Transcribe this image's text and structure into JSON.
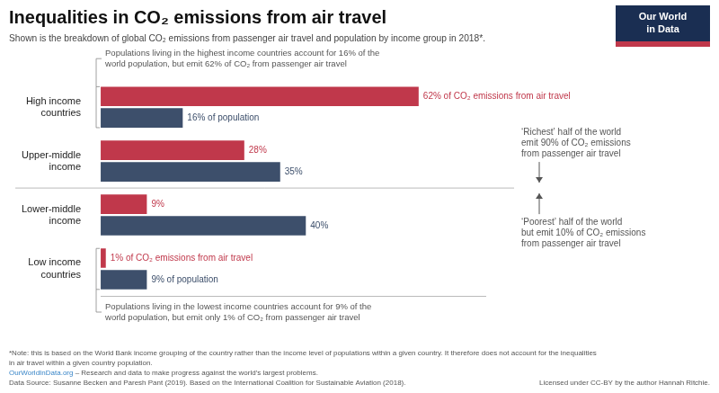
{
  "chart_data": {
    "type": "bar",
    "orientation": "horizontal",
    "title": "Inequalities in CO₂ emissions from air travel",
    "subtitle": "Shown is the breakdown of global CO₂ emissions from passenger air travel and population by income group in 2018*.",
    "categories": [
      "High income\ncountries",
      "Upper-middle\nincome",
      "Lower-middle\nincome",
      "Low income\ncountries"
    ],
    "series": [
      {
        "color": "#c0384b",
        "values": [
          62,
          28,
          9,
          1
        ],
        "value_labels": [
          "62% of CO₂ emissions from air travel",
          "28%",
          "9%",
          "1% of CO₂ emissions from air travel"
        ]
      },
      {
        "color": "#3d4f6b",
        "values": [
          16,
          35,
          40,
          9
        ],
        "value_labels": [
          "16% of population",
          "35%",
          "40%",
          "9% of population"
        ]
      }
    ],
    "xlim": [
      0,
      75
    ],
    "tick_labels": "y",
    "grid": false,
    "data_labels": true,
    "annotations": [
      {
        "text": [
          "Populations living in the highest income countries account for 16% of the",
          "world population, but emit 62% of CO₂ from passenger air travel"
        ]
      },
      {
        "text": [
          "Populations living in the lowest income countries account for 9% of the",
          "world population, but emit only 1% of CO₂ from passenger air travel"
        ]
      },
      {
        "text": [
          "‘Richest’ half of the world",
          "emit 90% of CO₂ emissions",
          "from passenger air travel"
        ]
      },
      {
        "text": [
          "‘Poorest’ half of the world",
          "but emit 10% of CO₂ emissions",
          "from passenger air travel"
        ]
      },
      {
        "text": [
          "Our World",
          "in Data"
        ],
        "colors": [
          "#1a2e52",
          "#c0384b"
        ]
      }
    ],
    "footer": [
      [
        "*Note: this is based on the World Bank income grouping of the country rather than the income level of populations within a given country. It therefore does not account for the inequalities"
      ],
      [
        "in air travel within a given country population."
      ],
      [
        {
          "text": "OurWorldInData.org",
          "color": "#3a86c8"
        },
        " – Research and data to make progress against the world’s largest problems."
      ],
      [
        "Data Source: Susanne Becken and Paresh Pant (2019). Based on the International Coalition for Sustainable Aviation (2018).",
        "Licensed under CC-BY by the author Hannah Ritchie."
      ]
    ]
  }
}
